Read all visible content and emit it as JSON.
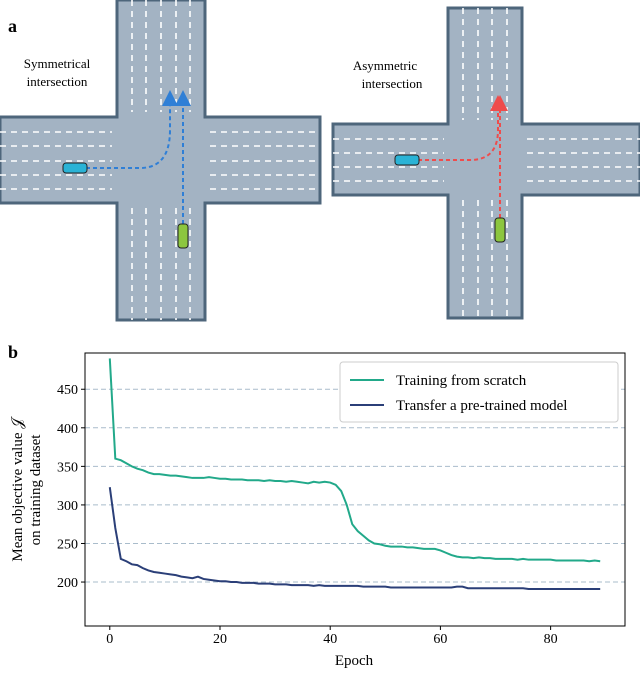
{
  "panel_a": {
    "label": "a",
    "left_caption": [
      "Symmetrical",
      "intersection"
    ],
    "right_caption": [
      "Asymmetric",
      "intersection"
    ]
  },
  "chart_data": {
    "type": "line",
    "panel_label": "b",
    "xlabel": "Epoch",
    "ylabel": [
      "Mean objective value 𝒥",
      "on training dataset"
    ],
    "x": [
      0,
      1,
      2,
      3,
      4,
      5,
      6,
      7,
      8,
      9,
      10,
      11,
      12,
      13,
      14,
      15,
      16,
      17,
      18,
      19,
      20,
      21,
      22,
      23,
      24,
      25,
      26,
      27,
      28,
      29,
      30,
      31,
      32,
      33,
      34,
      35,
      36,
      37,
      38,
      39,
      40,
      41,
      42,
      43,
      44,
      45,
      46,
      47,
      48,
      49,
      50,
      51,
      52,
      53,
      54,
      55,
      56,
      57,
      58,
      59,
      60,
      61,
      62,
      63,
      64,
      65,
      66,
      67,
      68,
      69,
      70,
      71,
      72,
      73,
      74,
      75,
      76,
      77,
      78,
      79,
      80,
      81,
      82,
      83,
      84,
      85,
      86,
      87,
      88,
      89
    ],
    "series": [
      {
        "name": "Training from scratch",
        "color": "#22a98a",
        "values": [
          490,
          360,
          358,
          354,
          350,
          347,
          345,
          342,
          340,
          340,
          339,
          338,
          338,
          337,
          336,
          335,
          335,
          335,
          336,
          335,
          334,
          334,
          333,
          333,
          333,
          332,
          332,
          332,
          331,
          332,
          331,
          331,
          330,
          331,
          330,
          329,
          328,
          330,
          329,
          330,
          329,
          326,
          318,
          300,
          275,
          266,
          260,
          254,
          250,
          249,
          247,
          246,
          246,
          246,
          245,
          245,
          244,
          243,
          243,
          243,
          241,
          238,
          235,
          233,
          232,
          232,
          231,
          232,
          231,
          231,
          230,
          230,
          230,
          230,
          229,
          230,
          229,
          229,
          229,
          229,
          229,
          228,
          228,
          228,
          228,
          228,
          228,
          227,
          228,
          227
        ]
      },
      {
        "name": "Transfer a pre-trained model",
        "color": "#2b3f78",
        "values": [
          323,
          270,
          230,
          227,
          223,
          222,
          218,
          215,
          213,
          212,
          211,
          210,
          209,
          207,
          206,
          205,
          207,
          204,
          203,
          202,
          201,
          201,
          200,
          200,
          199,
          199,
          199,
          198,
          198,
          198,
          197,
          197,
          197,
          196,
          196,
          196,
          196,
          195,
          196,
          195,
          195,
          195,
          195,
          195,
          195,
          195,
          194,
          194,
          194,
          194,
          194,
          193,
          193,
          193,
          193,
          193,
          193,
          193,
          193,
          193,
          193,
          193,
          193,
          194,
          194,
          192,
          192,
          192,
          192,
          192,
          192,
          192,
          192,
          192,
          192,
          192,
          191,
          191,
          191,
          191,
          191,
          191,
          191,
          191,
          191,
          191,
          191,
          191,
          191,
          191
        ]
      }
    ],
    "xlim": [
      -4.5,
      93.5
    ],
    "ylim": [
      143,
      497
    ],
    "xticks": [
      0,
      20,
      40,
      60,
      80
    ],
    "yticks": [
      200,
      250,
      300,
      350,
      400,
      450
    ],
    "grid": true,
    "legend": "upper right"
  }
}
